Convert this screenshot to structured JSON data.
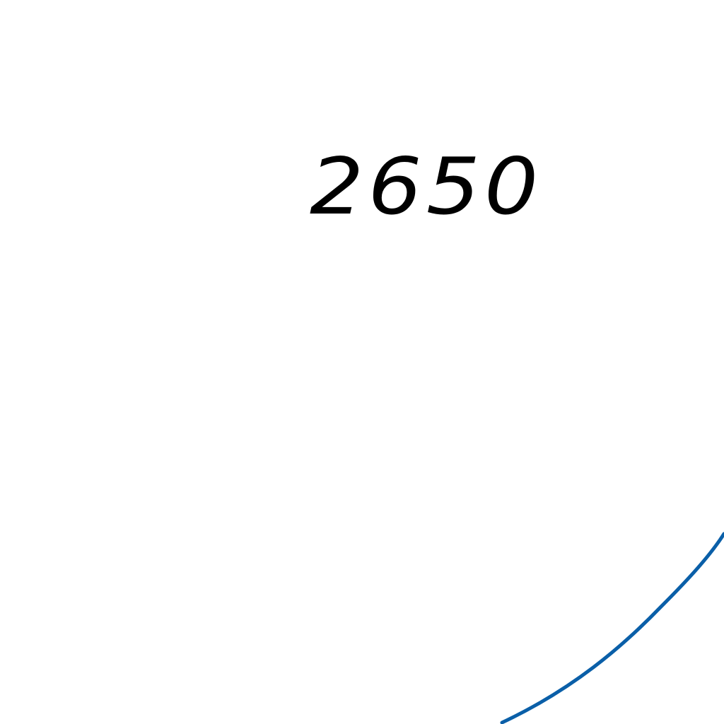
{
  "map": {
    "contour_label": "2650",
    "label_color": "#000000",
    "contour_line_color": "#0a5fa8",
    "background_color": "#ffffff"
  }
}
